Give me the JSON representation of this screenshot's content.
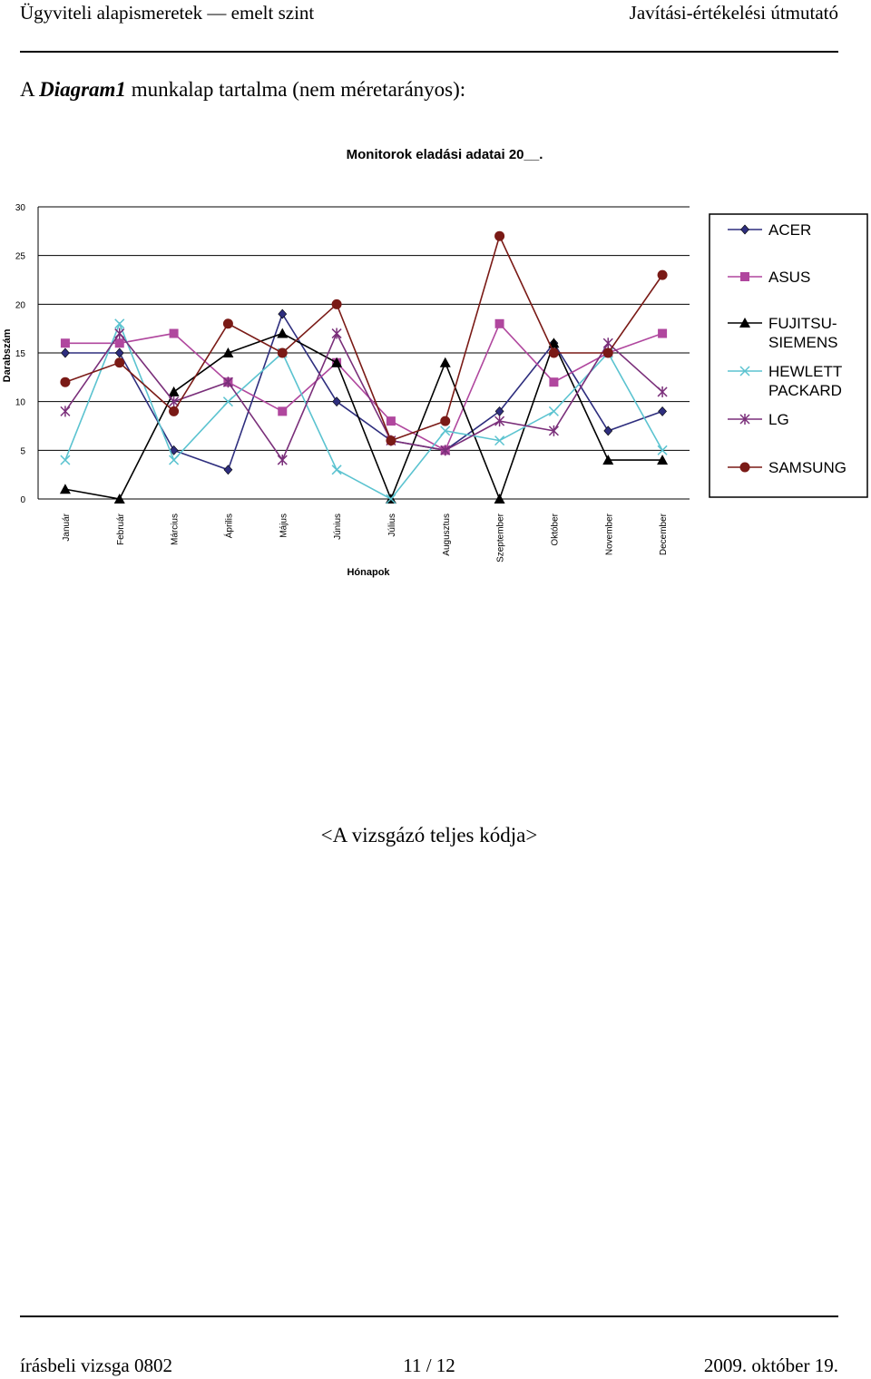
{
  "header": {
    "left": "Ügyviteli alapismeretek — emelt szint",
    "right": "Javítási-értékelési útmutató"
  },
  "intro": {
    "prefix": "A ",
    "italic": "Diagram1",
    "suffix": " munkalap tartalma (nem méretarányos):"
  },
  "chart_data": {
    "type": "line",
    "title": "Monitorok eladási adatai 20__.",
    "xlabel": "Hónapok",
    "ylabel": "Darabszám",
    "ylim": [
      0,
      30
    ],
    "yticks": [
      "0",
      "5",
      "10",
      "15",
      "20",
      "25",
      "30"
    ],
    "grid": "horizontal",
    "legend_position": "right",
    "categories": [
      "Január",
      "Február",
      "Március",
      "Április",
      "Május",
      "Június",
      "Július",
      "Augusztus",
      "Szeptember",
      "Október",
      "November",
      "December"
    ],
    "series": [
      {
        "name": "ACER",
        "color": "#2e2e7e",
        "marker": "diamond",
        "values": [
          15,
          15,
          5,
          3,
          19,
          10,
          6,
          5,
          9,
          16,
          7,
          9
        ]
      },
      {
        "name": "ASUS",
        "color": "#b0479e",
        "marker": "square",
        "values": [
          16,
          16,
          17,
          12,
          9,
          14,
          8,
          5,
          18,
          12,
          15,
          17
        ]
      },
      {
        "name": "FUJITSU-SIEMENS",
        "color": "#000000",
        "marker": "triangle",
        "values": [
          1,
          0,
          11,
          15,
          17,
          14,
          0,
          14,
          0,
          16,
          4,
          4
        ]
      },
      {
        "name": "HEWLETT PACKARD",
        "color": "#5bc3d0",
        "marker": "x",
        "values": [
          4,
          18,
          4,
          10,
          15,
          3,
          0,
          7,
          6,
          9,
          15,
          5
        ]
      },
      {
        "name": "LG",
        "color": "#7a2f7a",
        "marker": "star",
        "values": [
          9,
          17,
          10,
          12,
          4,
          17,
          6,
          5,
          8,
          7,
          16,
          11
        ]
      },
      {
        "name": "SAMSUNG",
        "color": "#7a1a16",
        "marker": "circle",
        "values": [
          12,
          14,
          9,
          18,
          15,
          20,
          6,
          8,
          27,
          15,
          15,
          23
        ]
      }
    ],
    "legend": [
      [
        "ACER"
      ],
      [
        "ASUS"
      ],
      [
        "FUJITSU-",
        "SIEMENS"
      ],
      [
        "HEWLETT",
        "PACKARD"
      ],
      [
        "LG"
      ],
      [
        "SAMSUNG"
      ]
    ]
  },
  "exam_code_placeholder": "<A vizsgázó teljes kódja>",
  "footer": {
    "left": "írásbeli vizsga 0802",
    "center": "11 / 12",
    "right": "2009. október 19."
  }
}
